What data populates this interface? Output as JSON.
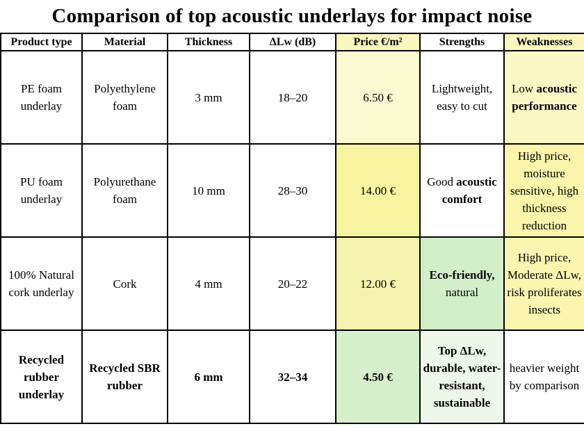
{
  "title": "Comparison of top acoustic underlays for impact noise",
  "table": {
    "header": [
      {
        "text": "Product type"
      },
      {
        "text": "Material"
      },
      {
        "text": "Thickness"
      },
      {
        "text": "ΔLw (dB)"
      },
      {
        "text": "Price €/m²",
        "bg": "#faf6bd"
      },
      {
        "text": "Strengths"
      },
      {
        "text": "Weaknesses",
        "bg": "#faf6bd"
      }
    ],
    "rows": [
      {
        "cells": [
          {
            "runs": [
              {
                "text": "PE foam underlay",
                "bold": false
              }
            ]
          },
          {
            "runs": [
              {
                "text": "Polyethylene foam",
                "bold": false
              }
            ]
          },
          {
            "runs": [
              {
                "text": "3 mm",
                "bold": false
              }
            ]
          },
          {
            "runs": [
              {
                "text": "18–20",
                "bold": false
              }
            ]
          },
          {
            "runs": [
              {
                "text": "6.50 €",
                "bold": false
              }
            ],
            "bg": "#fbf9d2"
          },
          {
            "runs": [
              {
                "text": "Lightweight, easy to cut",
                "bold": false
              }
            ]
          },
          {
            "runs": [
              {
                "text": "Low ",
                "bold": false
              },
              {
                "text": "acoustic performance",
                "bold": true
              }
            ],
            "bg": "#fcf8c6"
          }
        ]
      },
      {
        "cells": [
          {
            "runs": [
              {
                "text": "PU foam underlay",
                "bold": false
              }
            ]
          },
          {
            "runs": [
              {
                "text": "Polyurethane foam",
                "bold": false
              }
            ]
          },
          {
            "runs": [
              {
                "text": "10 mm",
                "bold": false
              }
            ]
          },
          {
            "runs": [
              {
                "text": "28–30",
                "bold": false
              }
            ]
          },
          {
            "runs": [
              {
                "text": "14.00 €",
                "bold": false
              }
            ],
            "bg": "#f8f3a0"
          },
          {
            "runs": [
              {
                "text": "Good ",
                "bold": false
              },
              {
                "text": "acoustic comfort",
                "bold": true
              }
            ]
          },
          {
            "runs": [
              {
                "text": "High price, moisture sensitive, high thickness reduction",
                "bold": false
              }
            ],
            "bg": "#fbf5ac"
          }
        ]
      },
      {
        "cells": [
          {
            "runs": [
              {
                "text": "100% Natural cork underlay",
                "bold": false
              }
            ]
          },
          {
            "runs": [
              {
                "text": "Cork",
                "bold": false
              }
            ]
          },
          {
            "runs": [
              {
                "text": "4 mm",
                "bold": false
              }
            ]
          },
          {
            "runs": [
              {
                "text": "20–22",
                "bold": false
              }
            ]
          },
          {
            "runs": [
              {
                "text": "12.00 €",
                "bold": false
              }
            ],
            "bg": "#f6f3ae"
          },
          {
            "runs": [
              {
                "text": "Eco-friendly, ",
                "bold": true
              },
              {
                "text": "natural",
                "bold": false
              }
            ],
            "bg": "#d3efca"
          },
          {
            "runs": [
              {
                "text": "High price, Moderate ΔLw, risk proliferates insects",
                "bold": false
              }
            ],
            "bg": "#fbf5b0"
          }
        ]
      },
      {
        "cells": [
          {
            "runs": [
              {
                "text": "Recycled rubber underlay",
                "bold": true
              }
            ]
          },
          {
            "runs": [
              {
                "text": "Recycled SBR rubber",
                "bold": true
              }
            ]
          },
          {
            "runs": [
              {
                "text": "6 mm",
                "bold": true
              }
            ]
          },
          {
            "runs": [
              {
                "text": "32–34",
                "bold": true
              }
            ]
          },
          {
            "runs": [
              {
                "text": "4.50 €",
                "bold": true
              }
            ],
            "bg": "#d6f0cb"
          },
          {
            "runs": [
              {
                "text": "Top ΔLw, durable, water-resistant, sustainable",
                "bold": true
              }
            ],
            "bg": "#eef8ea"
          },
          {
            "runs": [
              {
                "text": "heavier weight by comparison",
                "bold": false
              }
            ]
          }
        ]
      }
    ]
  }
}
